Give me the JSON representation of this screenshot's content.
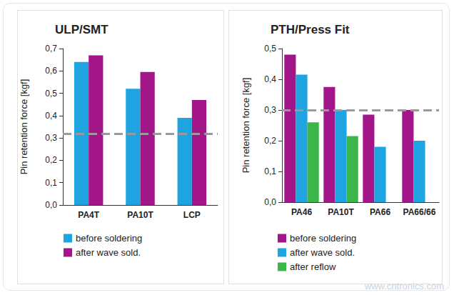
{
  "chart_data": [
    {
      "type": "bar",
      "title": "ULP/SMT",
      "y_label": "Pin retention force [kgf]",
      "categories": [
        "PA4T",
        "PA10T",
        "LCP"
      ],
      "series": [
        {
          "name": "before soldering",
          "color": "#1ea4e0",
          "values": [
            0.64,
            0.52,
            0.39
          ]
        },
        {
          "name": "after wave sold.",
          "color": "#a3168a",
          "values": [
            0.67,
            0.595,
            0.47
          ]
        }
      ],
      "threshold": 0.315,
      "ylim": [
        0,
        0.7
      ],
      "yticks": [
        {
          "value": 0,
          "label": "0,0"
        },
        {
          "value": 0.1,
          "label": "0,1"
        },
        {
          "value": 0.2,
          "label": "0,2"
        },
        {
          "value": 0.3,
          "label": "0,3"
        },
        {
          "value": 0.4,
          "label": "0,4"
        },
        {
          "value": 0.5,
          "label": "0,5"
        },
        {
          "value": 0.6,
          "label": "0,6"
        },
        {
          "value": 0.7,
          "label": "0,7"
        }
      ],
      "grid": false,
      "legend": "bottom"
    },
    {
      "type": "bar",
      "title": "PTH/Press Fit",
      "y_label": "Pin retention force [kgf]",
      "categories": [
        "PA46",
        "PA10T",
        "PA66",
        "PA66/66"
      ],
      "series": [
        {
          "name": "before soldering",
          "color": "#a3168a",
          "values": [
            0.48,
            0.375,
            0.285,
            0.3
          ]
        },
        {
          "name": "after wave sold.",
          "color": "#1ea4e0",
          "values": [
            0.415,
            0.3,
            0.18,
            0.2
          ]
        },
        {
          "name": "after reflow",
          "color": "#3cb54a",
          "values": [
            0.26,
            0.215,
            null,
            null
          ]
        }
      ],
      "threshold": 0.3,
      "ylim": [
        0,
        0.5
      ],
      "yticks": [
        {
          "value": 0,
          "label": "0,0"
        },
        {
          "value": 0.1,
          "label": "0,1"
        },
        {
          "value": 0.2,
          "label": "0,2"
        },
        {
          "value": 0.3,
          "label": "0,3"
        },
        {
          "value": 0.4,
          "label": "0,4"
        },
        {
          "value": 0.5,
          "label": "0,5"
        }
      ],
      "grid": false,
      "legend": "bottom",
      "annotation": "www.cntronics.com"
    }
  ]
}
